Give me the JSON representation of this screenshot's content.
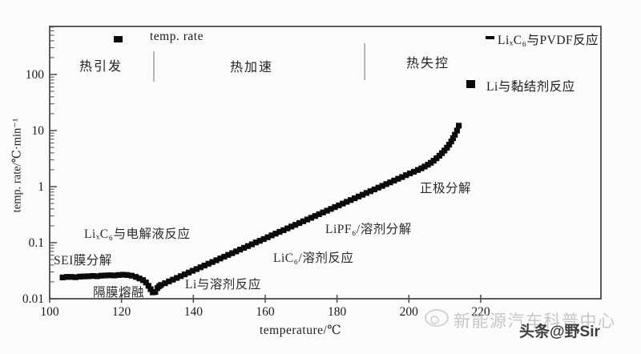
{
  "chart_data": {
    "type": "scatter",
    "title": "",
    "xlabel": "temperature/℃",
    "ylabel": "temp. rate/℃·min⁻¹",
    "x_ticks": [
      100,
      120,
      140,
      160,
      180,
      200,
      220
    ],
    "y_ticks": [
      0.01,
      0.1,
      1,
      10,
      100
    ],
    "y_tick_labels": [
      "0.01",
      "0.1",
      "1",
      "10",
      "100"
    ],
    "xlim": [
      100,
      253
    ],
    "ylim": [
      0.01,
      700
    ],
    "y_scale": "log",
    "grid": false,
    "legend_position": "inside-top",
    "marker": "square",
    "marker_color": "#0b0b0b",
    "frame_color": "#4a4a4a",
    "stage_divider_temps": [
      129.0,
      187.7
    ],
    "stages": [
      "热引发",
      "热加速",
      "热失控"
    ],
    "series": [
      {
        "name": "temp. rate",
        "points": [
          [
            103.6,
            0.024
          ],
          [
            104.8,
            0.0245
          ],
          [
            106,
            0.0245
          ],
          [
            107.2,
            0.0242
          ],
          [
            108.4,
            0.0248
          ],
          [
            109.6,
            0.025
          ],
          [
            110.8,
            0.0252
          ],
          [
            112,
            0.0255
          ],
          [
            113.2,
            0.0252
          ],
          [
            114.4,
            0.0258
          ],
          [
            115.6,
            0.026
          ],
          [
            116.8,
            0.0262
          ],
          [
            118,
            0.026
          ],
          [
            119.2,
            0.0265
          ],
          [
            120.4,
            0.0268
          ],
          [
            121.6,
            0.0265
          ],
          [
            122.8,
            0.0258
          ],
          [
            124,
            0.0245
          ],
          [
            125,
            0.023
          ],
          [
            126,
            0.0215
          ],
          [
            126.8,
            0.0195
          ],
          [
            127.5,
            0.017
          ],
          [
            128.1,
            0.0148
          ],
          [
            128.7,
            0.013
          ],
          [
            129.4,
            0.0132
          ],
          [
            130,
            0.0155
          ],
          [
            130.5,
            0.0168
          ],
          [
            131,
            0.0176
          ],
          [
            132.1,
            0.0189
          ],
          [
            133.2,
            0.0204
          ],
          [
            134.3,
            0.0219
          ],
          [
            135.4,
            0.0235
          ],
          [
            136.5,
            0.0253
          ],
          [
            137.6,
            0.0272
          ],
          [
            138.7,
            0.0293
          ],
          [
            139.8,
            0.0315
          ],
          [
            140.9,
            0.0338
          ],
          [
            142,
            0.0364
          ],
          [
            143.1,
            0.0391
          ],
          [
            144.2,
            0.0421
          ],
          [
            145.3,
            0.0452
          ],
          [
            146.4,
            0.0486
          ],
          [
            147.5,
            0.0523
          ],
          [
            148.6,
            0.0562
          ],
          [
            149.7,
            0.0605
          ],
          [
            150.8,
            0.065
          ],
          [
            151.9,
            0.0699
          ],
          [
            153,
            0.0752
          ],
          [
            154.1,
            0.0809
          ],
          [
            155.2,
            0.087
          ],
          [
            156.3,
            0.0935
          ],
          [
            157.4,
            0.101
          ],
          [
            158.5,
            0.108
          ],
          [
            159.6,
            0.116
          ],
          [
            160.7,
            0.125
          ],
          [
            161.8,
            0.135
          ],
          [
            162.9,
            0.145
          ],
          [
            164,
            0.156
          ],
          [
            165.1,
            0.167
          ],
          [
            166.2,
            0.18
          ],
          [
            167.3,
            0.194
          ],
          [
            168.4,
            0.208
          ],
          [
            169.5,
            0.224
          ],
          [
            170.6,
            0.241
          ],
          [
            171.7,
            0.259
          ],
          [
            172.8,
            0.278
          ],
          [
            173.9,
            0.299
          ],
          [
            175,
            0.322
          ],
          [
            176.1,
            0.346
          ],
          [
            177.2,
            0.372
          ],
          [
            178.3,
            0.4
          ],
          [
            179.4,
            0.431
          ],
          [
            180.5,
            0.463
          ],
          [
            181.6,
            0.498
          ],
          [
            182.7,
            0.536
          ],
          [
            183.8,
            0.576
          ],
          [
            184.9,
            0.619
          ],
          [
            186,
            0.666
          ],
          [
            187.1,
            0.716
          ],
          [
            188.2,
            0.771
          ],
          [
            189.3,
            0.829
          ],
          [
            190.4,
            0.891
          ],
          [
            191.5,
            0.958
          ],
          [
            192.6,
            1.03
          ],
          [
            193.7,
            1.11
          ],
          [
            194.8,
            1.19
          ],
          [
            195.9,
            1.28
          ],
          [
            197,
            1.38
          ],
          [
            198.1,
            1.48
          ],
          [
            199.2,
            1.6
          ],
          [
            200.3,
            1.72
          ],
          [
            201.4,
            1.84
          ],
          [
            202.5,
            1.98
          ],
          [
            203.5,
            2.12
          ],
          [
            204.4,
            2.28
          ],
          [
            205.3,
            2.46
          ],
          [
            206.1,
            2.66
          ],
          [
            206.9,
            2.9
          ],
          [
            207.7,
            3.2
          ],
          [
            208.5,
            3.55
          ],
          [
            209.2,
            3.95
          ],
          [
            209.9,
            4.4
          ],
          [
            210.6,
            4.95
          ],
          [
            211.2,
            5.6
          ],
          [
            211.8,
            6.4
          ],
          [
            212.3,
            7.3
          ],
          [
            212.8,
            8.4
          ],
          [
            213.4,
            10.0
          ],
          [
            213.9,
            12.2
          ]
        ]
      }
    ]
  },
  "legend": {
    "inside_label": "temp. rate",
    "pvdf_label": "LiₓC₆与PVDF反应",
    "binder_label": "Li与黏结剂反应"
  },
  "stages": {
    "s1": "热引发",
    "s2": "热加速",
    "s3": "热失控"
  },
  "annotations": {
    "sei": "SEI膜分解",
    "electrolyte": "LiₓC₆与电解液反应",
    "separator": "隔膜熔融",
    "li_solvent": "Li与溶剂反应",
    "lic6_solvent": "LiC₆/溶剂反应",
    "lipf6_solvent": "LiPF₆/溶剂分解",
    "cathode": "正极分解"
  },
  "axes": {
    "x_title": "temperature/℃",
    "y_title": "temp. rate/℃·min⁻¹"
  },
  "watermark": {
    "brand": "新能源汽车科普中心",
    "credit": "头条@野Sir"
  }
}
